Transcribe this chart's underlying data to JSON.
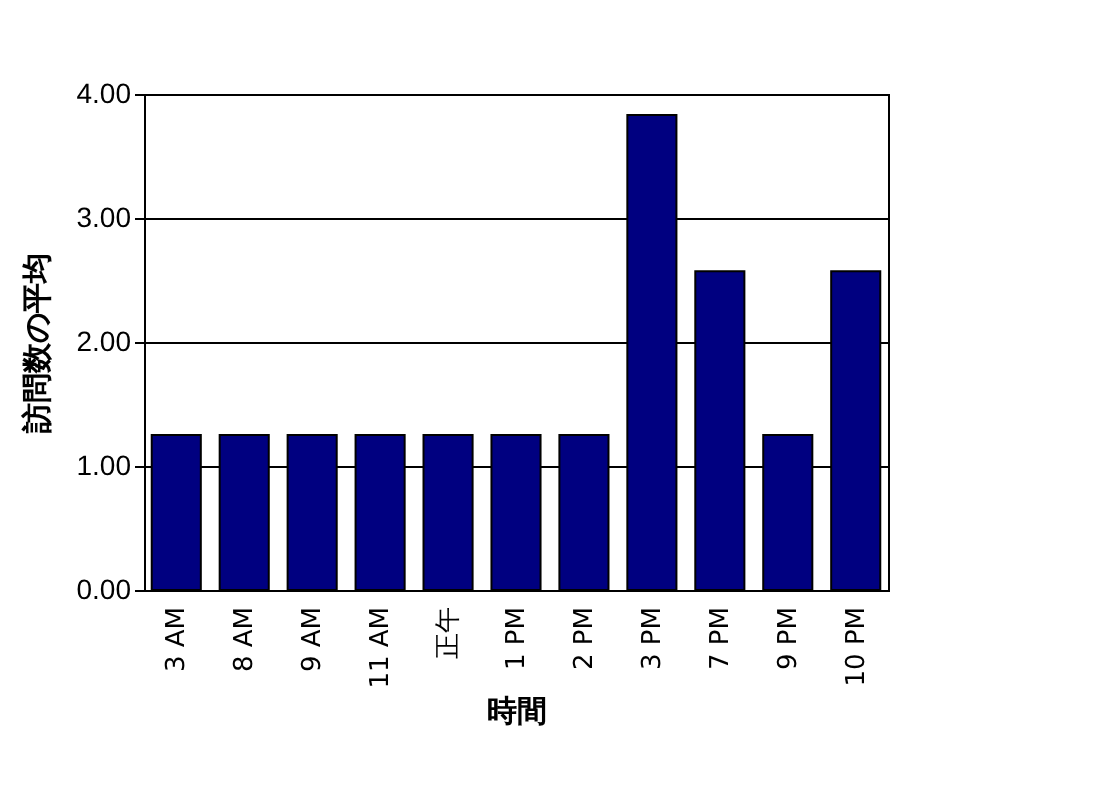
{
  "chart_data": {
    "type": "bar",
    "xlabel": "時間",
    "ylabel": "訪問数の平均",
    "categories": [
      "3 AM",
      "8 AM",
      "9 AM",
      "11 AM",
      "正午",
      "1 PM",
      "2 PM",
      "3 PM",
      "7 PM",
      "9 PM",
      "10 PM"
    ],
    "values": [
      1.25,
      1.25,
      1.25,
      1.25,
      1.25,
      1.25,
      1.25,
      3.83,
      2.57,
      1.25,
      2.57
    ],
    "color": "#000080",
    "ylim": [
      0,
      4
    ],
    "yticks": [
      {
        "value": 0,
        "label": "0.00"
      },
      {
        "value": 1,
        "label": "1.00"
      },
      {
        "value": 2,
        "label": "2.00"
      },
      {
        "value": 3,
        "label": "3.00"
      },
      {
        "value": 4,
        "label": "4.00"
      }
    ],
    "grid": "y"
  }
}
